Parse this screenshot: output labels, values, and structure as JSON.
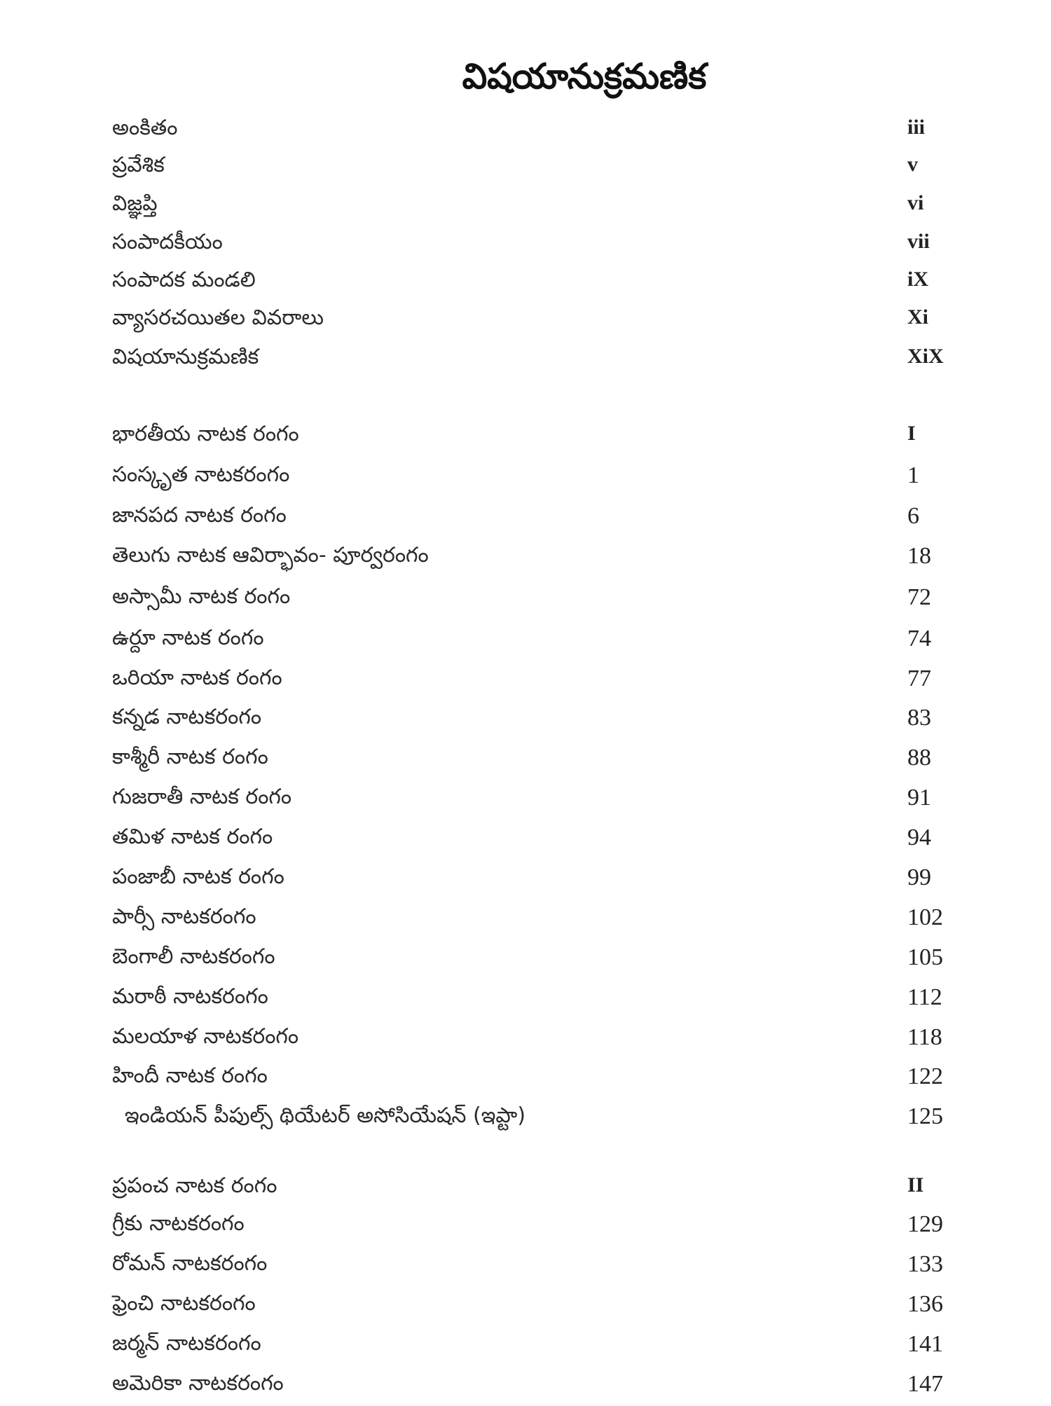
{
  "title": "విషయానుక్రమణిక",
  "sections": [
    {
      "entries": [
        {
          "label": "అంకితం",
          "page": "iii",
          "roman": true
        },
        {
          "label": "ప్రవేశిక",
          "page": "v",
          "roman": true
        },
        {
          "label": "విజ్ఞప్తి",
          "page": "vi",
          "roman": true
        },
        {
          "label": "సంపాదకీయం",
          "page": "vii",
          "roman": true
        },
        {
          "label": "సంపాదక మండలి",
          "page": "iX",
          "roman": true
        },
        {
          "label": "వ్యాసరచయితల వివరాలు",
          "page": "Xi",
          "roman": true
        },
        {
          "label": "విషయానుక్రమణిక",
          "page": "XiX",
          "roman": true
        }
      ]
    },
    {
      "entries": [
        {
          "label": "భారతీయ నాటక రంగం",
          "page": "I",
          "roman": true
        },
        {
          "label": "సంస్కృత నాటకరంగం",
          "page": "1"
        },
        {
          "label": "జానపద నాటక రంగం",
          "page": "6"
        },
        {
          "label": "తెలుగు నాటక ఆవిర్భావం- పూర్వరంగం",
          "page": "18"
        },
        {
          "label": "అస్సామీ నాటక రంగం",
          "page": "72"
        },
        {
          "label": "ఉర్దూ నాటక రంగం",
          "page": "74"
        },
        {
          "label": "ఒరియా నాటక రంగం",
          "page": "77"
        },
        {
          "label": "కన్నడ నాటకరంగం",
          "page": "83"
        },
        {
          "label": "కాశ్మీరీ నాటక రంగం",
          "page": "88"
        },
        {
          "label": "గుజరాతీ నాటక రంగం",
          "page": "91"
        },
        {
          "label": "తమిళ నాటక రంగం",
          "page": "94"
        },
        {
          "label": "పంజాబీ నాటక రంగం",
          "page": "99"
        },
        {
          "label": "పార్సీ నాటకరంగం",
          "page": "102"
        },
        {
          "label": "బెంగాలీ నాటకరంగం",
          "page": "105"
        },
        {
          "label": "మరాఠీ నాటకరంగం",
          "page": "112"
        },
        {
          "label": "మలయాళ నాటకరంగం",
          "page": "118"
        },
        {
          "label": "హిందీ నాటక రంగం",
          "page": "122"
        },
        {
          "label": "ఇండియన్ పీపుల్స్ థియేటర్ అసోసియేషన్ (ఇప్టా)",
          "page": "125",
          "indent": true
        }
      ]
    },
    {
      "entries": [
        {
          "label": "ప్రపంచ నాటక రంగం",
          "page": "II",
          "roman": true
        },
        {
          "label": "గ్రీకు నాటకరంగం",
          "page": "129"
        },
        {
          "label": "రోమన్ నాటకరంగం",
          "page": "133"
        },
        {
          "label": "ఫ్రెంచి నాటకరంగం",
          "page": "136"
        },
        {
          "label": "జర్మన్ నాటకరంగం",
          "page": "141"
        },
        {
          "label": "అమెరికా నాటకరంగం",
          "page": "147"
        }
      ]
    }
  ]
}
